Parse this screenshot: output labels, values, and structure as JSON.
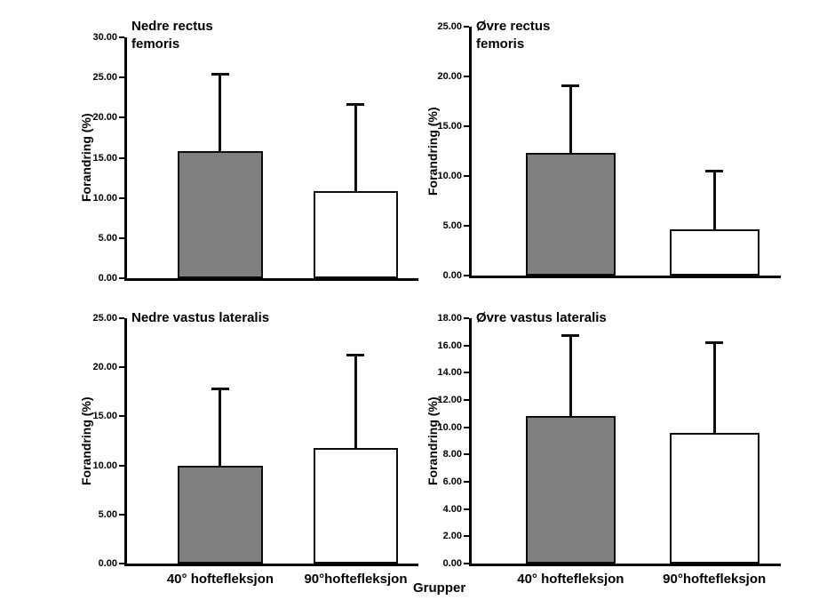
{
  "figure": {
    "x_axis_title": "Grupper"
  },
  "chart_data": [
    {
      "type": "bar",
      "title": "Nedre rectus femoris",
      "ylabel": "Forandring (%)",
      "ylim": [
        0,
        30
      ],
      "ytick_step": 5,
      "ytick_decimals": 2,
      "categories": [
        "40° hoftefleksjon",
        "90°hoftefleksjon"
      ],
      "values": [
        15.8,
        10.9
      ],
      "errors_upper": [
        9.6,
        10.7
      ],
      "bar_colors": [
        "#808080",
        "#ffffff"
      ],
      "bar_border_color": "#0d0d0d",
      "show_category_labels": false,
      "grid": false,
      "legend": "none"
    },
    {
      "type": "bar",
      "title": "Øvre rectus femoris",
      "ylabel": "Forandring (%)",
      "ylim": [
        0,
        25
      ],
      "ytick_step": 5,
      "ytick_decimals": 2,
      "categories": [
        "40° hoftefleksjon",
        "90°hoftefleksjon"
      ],
      "values": [
        12.3,
        4.6
      ],
      "errors_upper": [
        6.8,
        5.9
      ],
      "bar_colors": [
        "#808080",
        "#ffffff"
      ],
      "bar_border_color": "#0d0d0d",
      "show_category_labels": false,
      "grid": false,
      "legend": "none"
    },
    {
      "type": "bar",
      "title": "Nedre vastus lateralis",
      "ylabel": "Forandring (%)",
      "ylim": [
        0,
        25
      ],
      "ytick_step": 5,
      "ytick_decimals": 2,
      "categories": [
        "40° hoftefleksjon",
        "90°hoftefleksjon"
      ],
      "values": [
        10.0,
        11.8
      ],
      "errors_upper": [
        7.8,
        9.4
      ],
      "bar_colors": [
        "#808080",
        "#ffffff"
      ],
      "bar_border_color": "#0d0d0d",
      "show_category_labels": true,
      "grid": false,
      "legend": "none"
    },
    {
      "type": "bar",
      "title": "Øvre vastus lateralis",
      "ylabel": "Forandring (%)",
      "ylim": [
        0,
        18
      ],
      "ytick_step": 2,
      "ytick_decimals": 2,
      "categories": [
        "40° hoftefleksjon",
        "90°hoftefleksjon"
      ],
      "values": [
        10.8,
        9.6
      ],
      "errors_upper": [
        5.9,
        6.6
      ],
      "bar_colors": [
        "#808080",
        "#ffffff"
      ],
      "bar_border_color": "#0d0d0d",
      "show_category_labels": true,
      "grid": false,
      "legend": "none"
    }
  ]
}
